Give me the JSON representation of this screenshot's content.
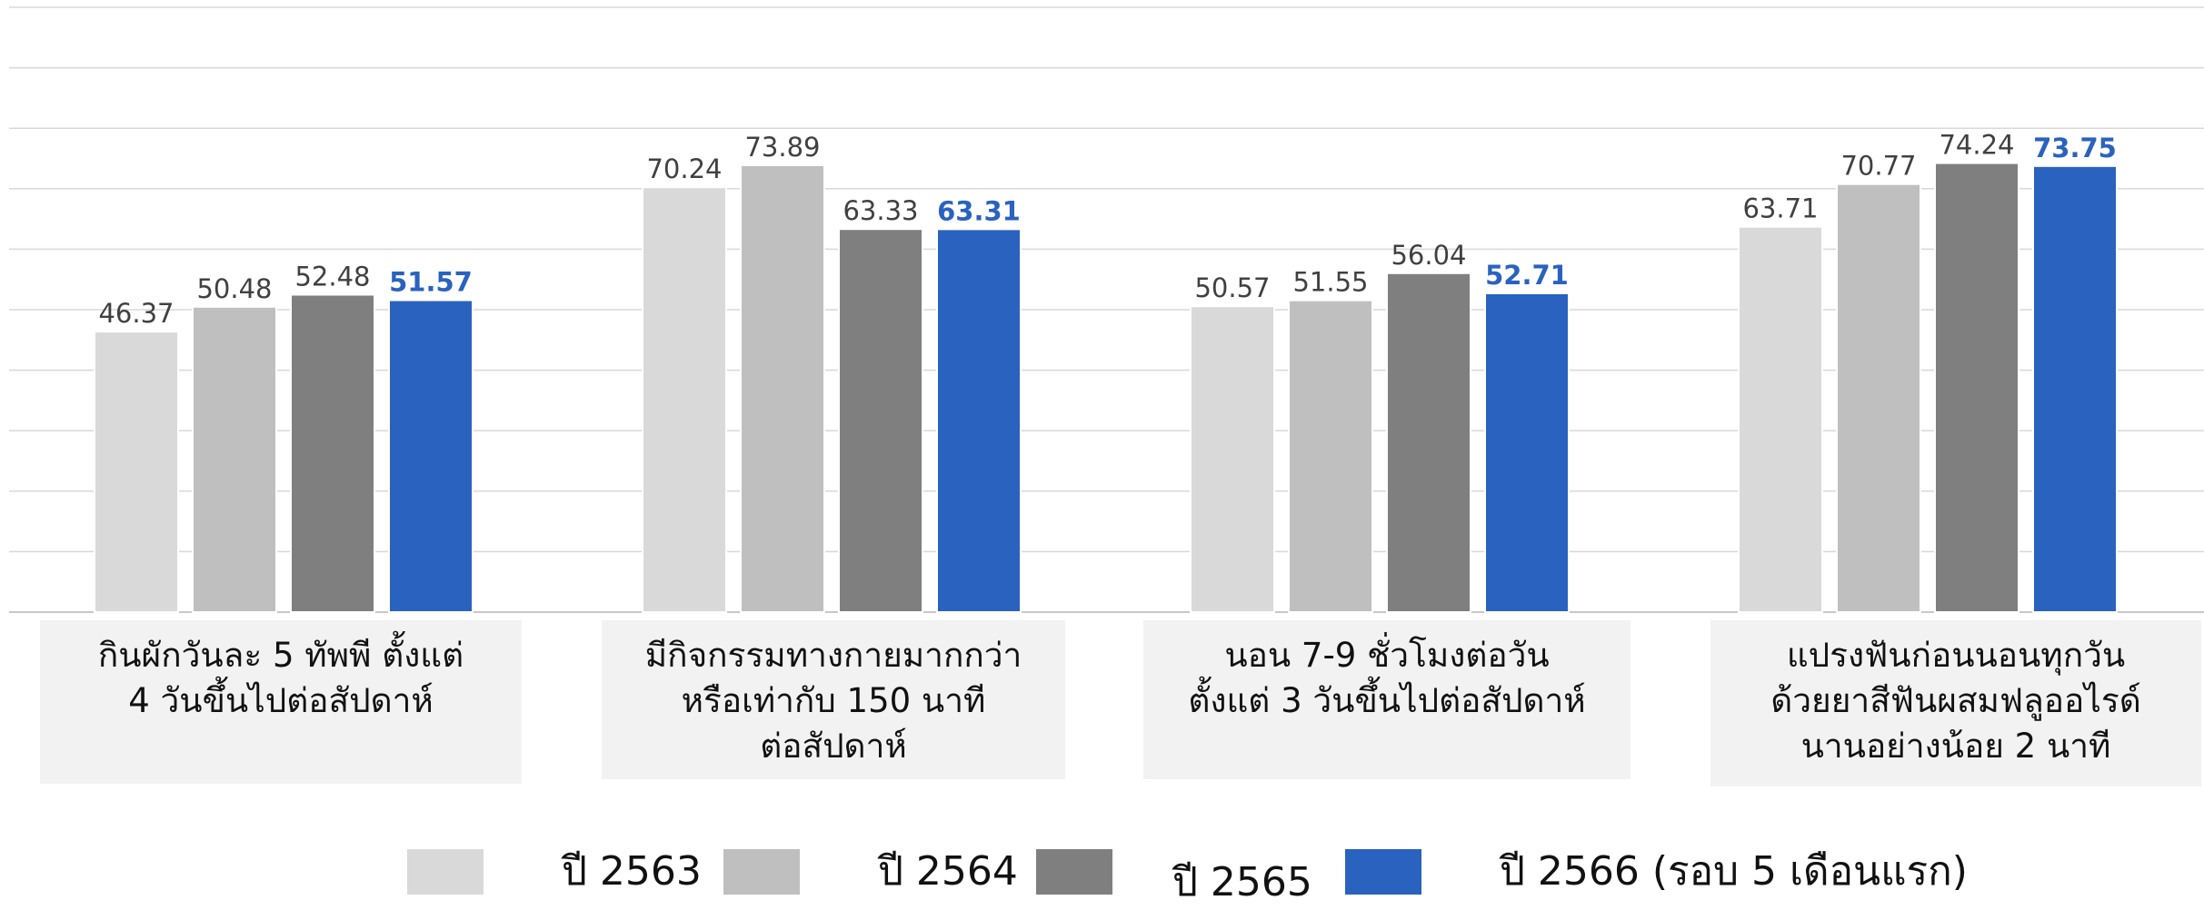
{
  "chart_data": {
    "type": "bar",
    "ylim": [
      0,
      100
    ],
    "grid": true,
    "legend_position": "bottom",
    "categories": [
      "กินผักวันละ 5 ทัพพี ตั้งแต่\n4 วันขึ้นไปต่อสัปดาห์",
      "มีกิจกรรมทางกายมากกว่า\nหรือเท่ากับ 150 นาที\nต่อสัปดาห์",
      "นอน 7-9 ชั่วโมงต่อวัน\nตั้งแต่ 3 วันขึ้นไปต่อสัปดาห์",
      "แปรงฟันก่อนนอนทุกวัน\nด้วยยาสีฟันผสมฟลูออไรด์\nนานอย่างน้อย 2 นาที"
    ],
    "series": [
      {
        "name": "ปี 2563",
        "color": "#d9d9d9",
        "values": [
          46.37,
          70.24,
          50.57,
          63.71
        ]
      },
      {
        "name": "ปี 2564",
        "color": "#bfbfbf",
        "values": [
          50.48,
          73.89,
          51.55,
          70.77
        ]
      },
      {
        "name": "ปี 2565",
        "color": "#7f7f7f",
        "values": [
          52.48,
          63.33,
          56.04,
          74.24
        ]
      },
      {
        "name": "ปี 2566 (รอบ 5 เดือนแรก)",
        "color": "#2a62bf",
        "values": [
          51.57,
          63.31,
          52.71,
          73.75
        ]
      }
    ],
    "highlight_series": 3
  }
}
